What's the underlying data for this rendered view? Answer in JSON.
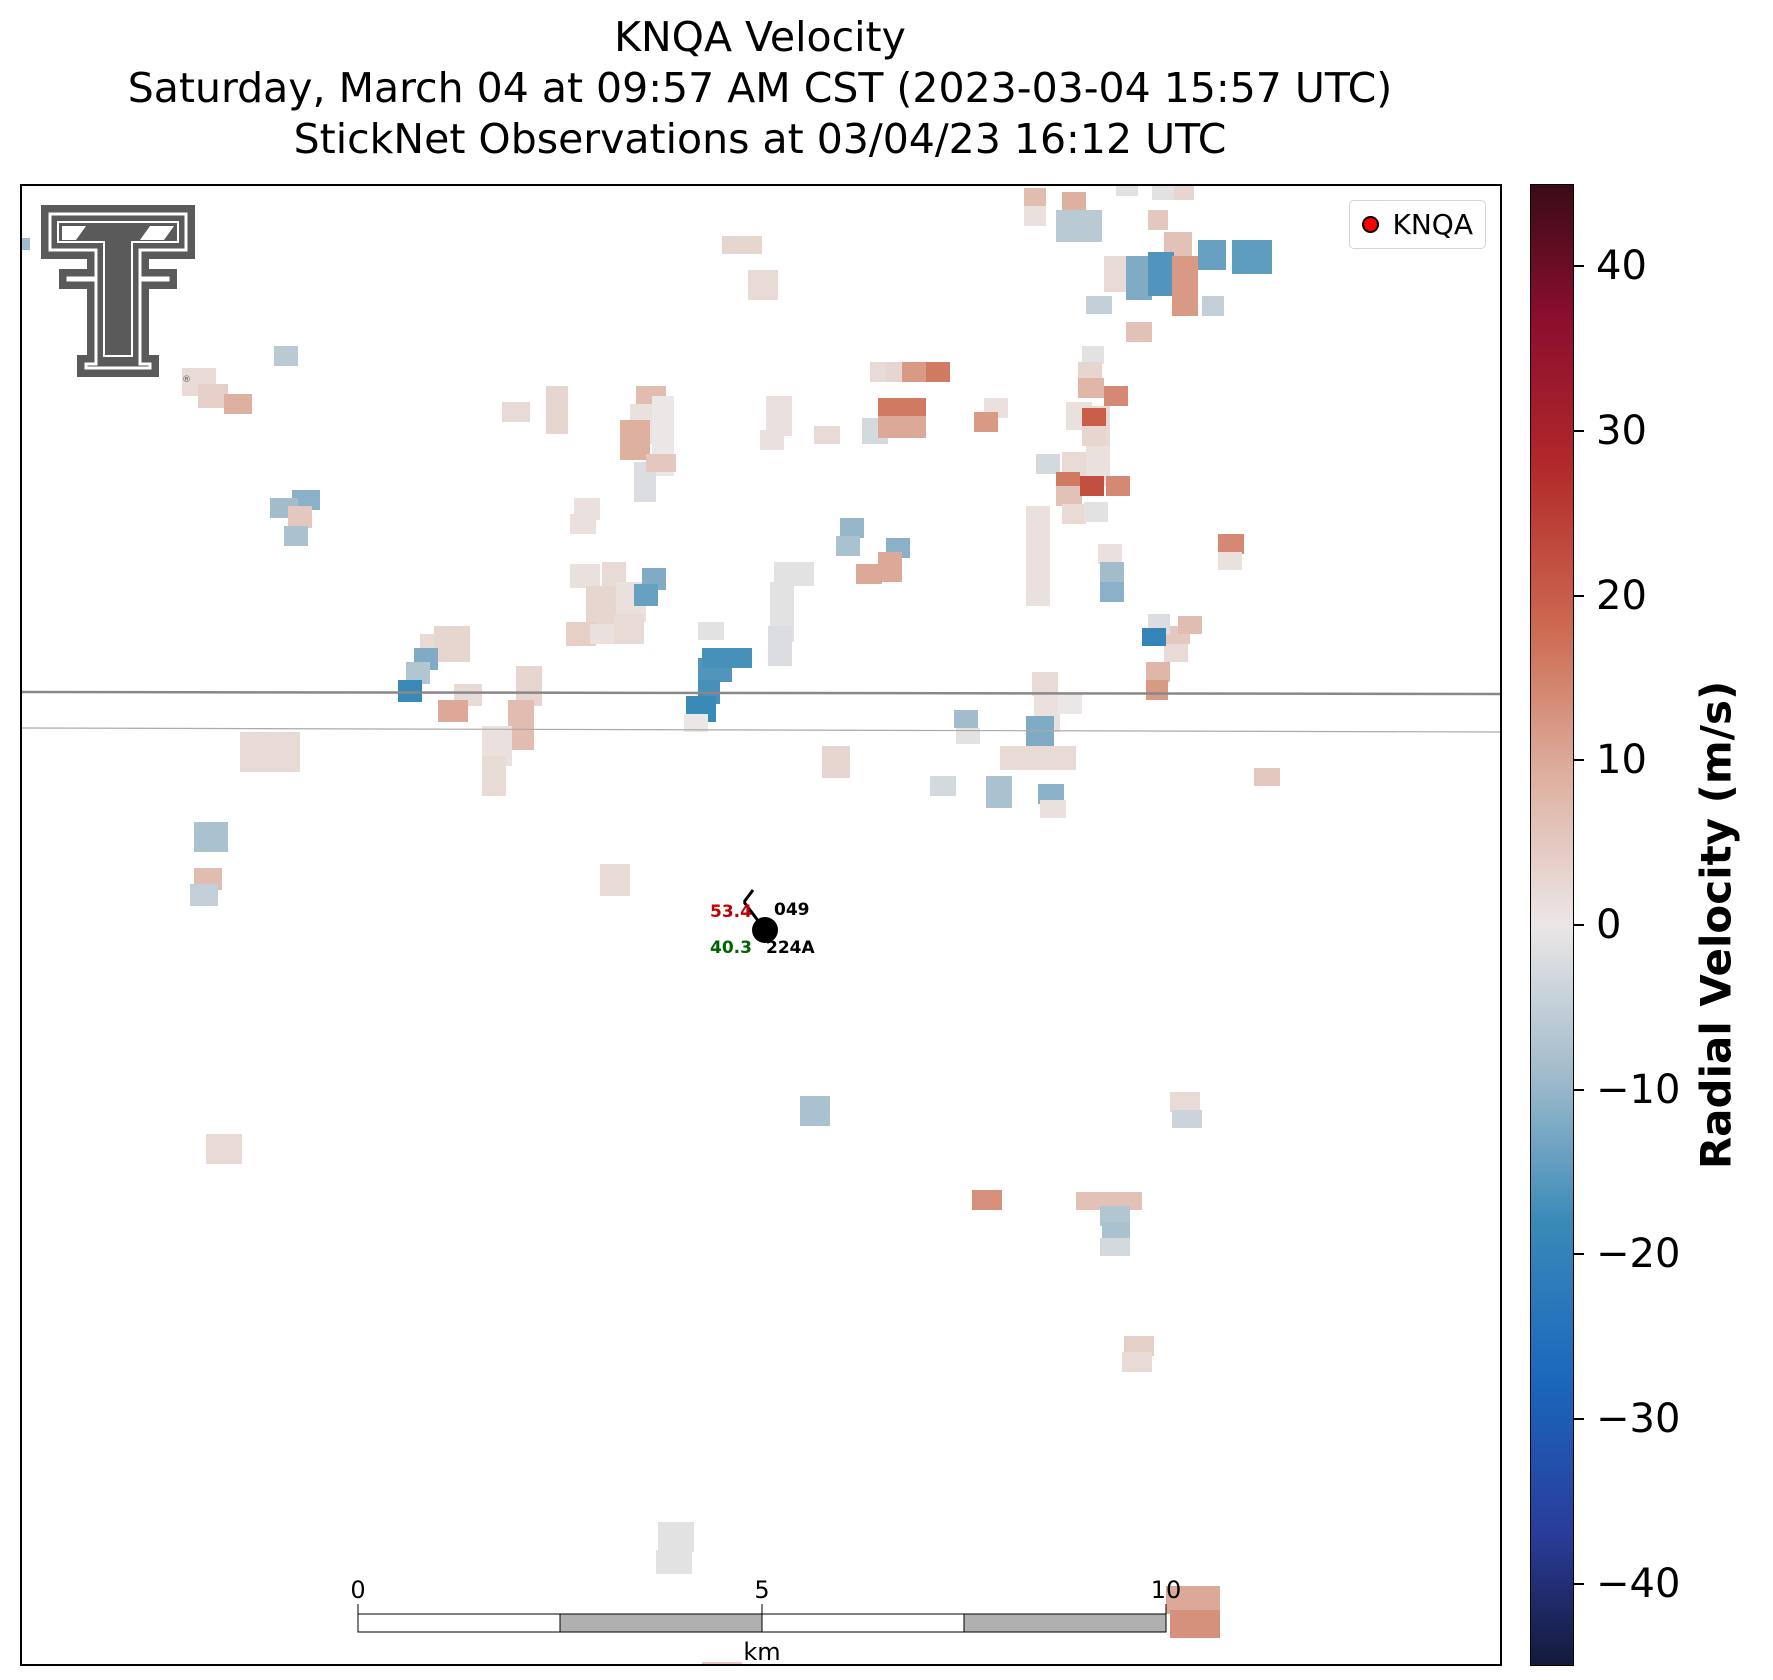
{
  "title": {
    "line1": "KNQA Velocity",
    "line2": "Saturday, March 04 at 09:57 AM CST (2023-03-04 15:57 UTC)",
    "line3": "StickNet Observations at 03/04/23 16:12 UTC"
  },
  "legend": {
    "label": "KNQA",
    "marker_color": "#ff0000"
  },
  "logo": {
    "name": "texas-tech-double-t-logo",
    "color": "#5a5a5a"
  },
  "station": {
    "id": "224A",
    "temperature": "53.4",
    "dewpoint": "40.3",
    "pressure": "049",
    "temperature_color": "#c00000",
    "dewpoint_color": "#006400"
  },
  "scale_bar": {
    "labels": [
      "0",
      "5",
      "10"
    ],
    "unit": "km"
  },
  "colorbar": {
    "label": "Radial Velocity (m/s)",
    "range": [
      -45,
      45
    ],
    "ticks": [
      40,
      30,
      20,
      10,
      0,
      -10,
      -20,
      -30,
      -40
    ],
    "tick_labels": [
      "40",
      "30",
      "20",
      "10",
      "0",
      "−10",
      "−20",
      "−30",
      "−40"
    ],
    "colormap_stops": [
      {
        "value": -45,
        "color": "#141a3c"
      },
      {
        "value": -37,
        "color": "#2a3c9a"
      },
      {
        "value": -28,
        "color": "#1a66bc"
      },
      {
        "value": -18,
        "color": "#3a8ab8"
      },
      {
        "value": -9,
        "color": "#a2bccc"
      },
      {
        "value": 0,
        "color": "#ebe7e6"
      },
      {
        "value": 9,
        "color": "#deb0a0"
      },
      {
        "value": 18,
        "color": "#cd6a50"
      },
      {
        "value": 28,
        "color": "#b2282a"
      },
      {
        "value": 37,
        "color": "#8a0e2e"
      },
      {
        "value": 45,
        "color": "#3a0c16"
      }
    ]
  }
}
